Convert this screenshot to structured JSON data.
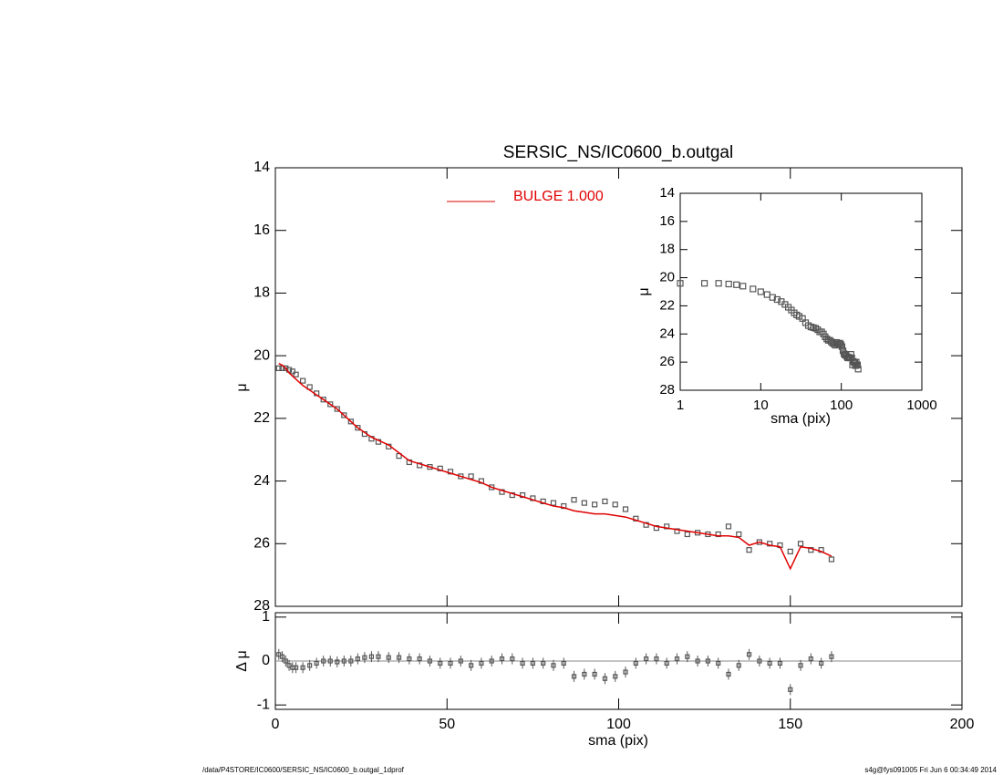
{
  "chart_data": [
    {
      "type": "line",
      "title": "SERSIC_NS/IC0600_b.outgal",
      "ylabel": "μ",
      "x": [
        1,
        2,
        3,
        4,
        5,
        6,
        8,
        10,
        12,
        14,
        16,
        18,
        20,
        22,
        24,
        26,
        28,
        30,
        33,
        36,
        39,
        42,
        45,
        48,
        51,
        54,
        57,
        60,
        63,
        66,
        69,
        72,
        75,
        78,
        81,
        84,
        87,
        90,
        93,
        96,
        99,
        102,
        105,
        108,
        111,
        114,
        117,
        120,
        123,
        126,
        129,
        132,
        135,
        138,
        141,
        144,
        147,
        150,
        153,
        156,
        159,
        162
      ],
      "series": [
        {
          "color": "#555555",
          "marker": "square",
          "values": [
            20.4,
            20.4,
            20.4,
            20.45,
            20.5,
            20.6,
            20.8,
            21.0,
            21.2,
            21.4,
            21.55,
            21.7,
            21.9,
            22.1,
            22.3,
            22.5,
            22.65,
            22.75,
            22.9,
            23.2,
            23.4,
            23.5,
            23.55,
            23.6,
            23.7,
            23.85,
            23.85,
            24.0,
            24.2,
            24.35,
            24.45,
            24.45,
            24.55,
            24.65,
            24.7,
            24.8,
            24.6,
            24.7,
            24.75,
            24.65,
            24.75,
            24.9,
            25.2,
            25.4,
            25.5,
            25.45,
            25.6,
            25.7,
            25.65,
            25.7,
            25.7,
            25.45,
            25.7,
            26.2,
            25.95,
            26.0,
            26.05,
            26.25,
            26.0,
            26.2,
            26.2,
            26.5
          ]
        },
        {
          "name": "BULGE  1.000",
          "color": "#e00000",
          "values": [
            20.25,
            20.3,
            20.4,
            20.55,
            20.65,
            20.75,
            20.95,
            21.1,
            21.25,
            21.4,
            21.55,
            21.7,
            21.9,
            22.1,
            22.3,
            22.45,
            22.6,
            22.7,
            22.85,
            23.1,
            23.35,
            23.45,
            23.55,
            23.65,
            23.75,
            23.85,
            23.95,
            24.05,
            24.2,
            24.3,
            24.4,
            24.5,
            24.6,
            24.7,
            24.8,
            24.85,
            24.95,
            25.0,
            25.05,
            25.05,
            25.1,
            25.15,
            25.25,
            25.35,
            25.45,
            25.5,
            25.55,
            25.6,
            25.65,
            25.7,
            25.75,
            25.75,
            25.8,
            26.05,
            25.95,
            26.05,
            26.1,
            26.8,
            26.1,
            26.15,
            26.25,
            26.4
          ]
        }
      ],
      "xlim": [
        0,
        200
      ],
      "ylim": [
        28,
        14
      ],
      "yticks": [
        14,
        16,
        18,
        20,
        22,
        24,
        26,
        28
      ]
    },
    {
      "type": "scatter",
      "ylabel": "Δ μ",
      "xlabel": "sma (pix)",
      "color": "#555555",
      "values": [
        0.15,
        0.1,
        0.0,
        -0.1,
        -0.15,
        -0.15,
        -0.15,
        -0.1,
        -0.05,
        0,
        0,
        -0.02,
        0,
        0,
        0.05,
        0.08,
        0.1,
        0.1,
        0.08,
        0.08,
        0.05,
        0.05,
        0,
        -0.05,
        -0.05,
        0,
        -0.1,
        -0.05,
        0,
        0.05,
        0.05,
        -0.05,
        -0.05,
        -0.05,
        -0.1,
        -0.05,
        -0.35,
        -0.3,
        -0.3,
        -0.4,
        -0.35,
        -0.25,
        -0.05,
        0.05,
        0.05,
        -0.05,
        0.05,
        0.1,
        0,
        0,
        -0.05,
        -0.3,
        -0.1,
        0.15,
        0,
        -0.05,
        -0.05,
        -0.65,
        -0.1,
        0.05,
        -0.05,
        0.1
      ],
      "xlim": [
        0,
        200
      ],
      "xticks": [
        0,
        50,
        100,
        150,
        200
      ],
      "ylim": [
        -1.1,
        1.1
      ],
      "yticks": [
        -1,
        0,
        1
      ]
    },
    {
      "type": "scatter",
      "ylabel": "μ",
      "xlabel": "sma (pix)",
      "xlog": true,
      "xlim": [
        1,
        1000
      ],
      "xticks": [
        1,
        10,
        100,
        1000
      ],
      "ylim": [
        28,
        14
      ],
      "yticks": [
        14,
        16,
        18,
        20,
        22,
        24,
        26,
        28
      ]
    }
  ],
  "footer": {
    "left": "/data/P4STORE/IC0600/SERSIC_NS/IC0600_b.outgal_1dprof",
    "right": "s4g@fys091005  Fri Jun  6 00:34:49 2014"
  }
}
